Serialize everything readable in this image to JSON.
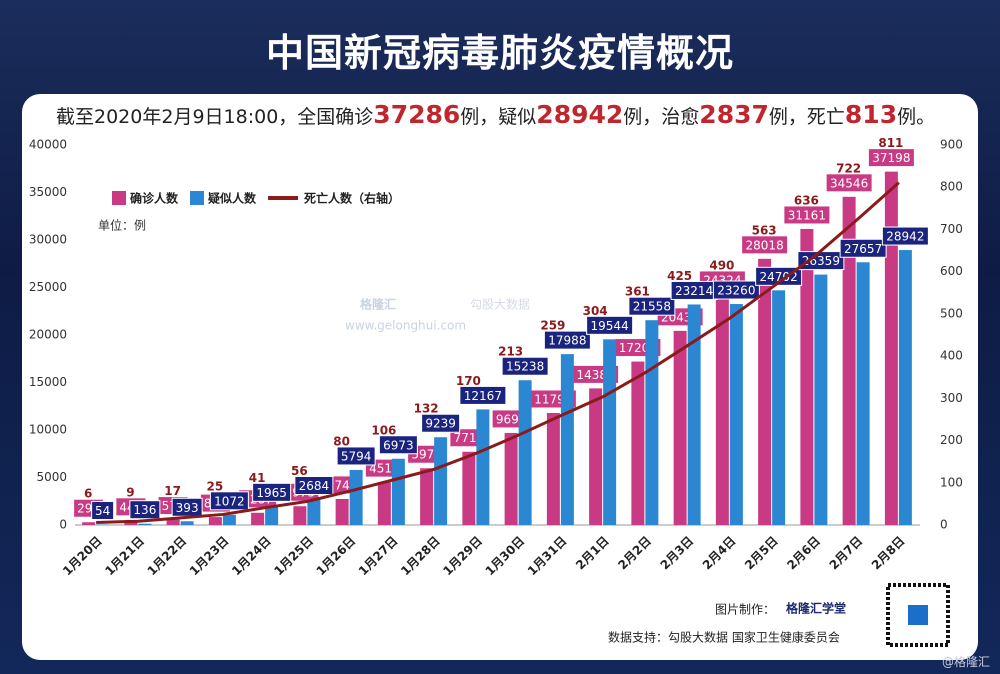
{
  "header": {
    "title": "中国新冠病毒肺炎疫情概况",
    "subtitle": [
      "截至2020年2月9日18:00，全国确诊",
      "37286",
      "例，疑似",
      "28942",
      "例，治愈",
      "2837",
      "例，死亡",
      "813",
      "例。"
    ]
  },
  "chart_data": {
    "type": "bar",
    "unit": "单位：例",
    "categories": [
      "1月20日",
      "1月21日",
      "1月22日",
      "1月23日",
      "1月24日",
      "1月25日",
      "1月26日",
      "1月27日",
      "1月28日",
      "1月29日",
      "1月30日",
      "1月31日",
      "2月1日",
      "2月2日",
      "2月3日",
      "2月4日",
      "2月5日",
      "2月6日",
      "2月7日",
      "2月8日"
    ],
    "series": [
      {
        "name": "确诊人数",
        "type": "bar",
        "color": "#c93a84",
        "label_color": "#c93a84",
        "values": [
          291,
          440,
          571,
          830,
          1287,
          1975,
          2744,
          4515,
          5974,
          7711,
          9692,
          11791,
          14380,
          17205,
          20438,
          24324,
          28018,
          31161,
          34546,
          37198
        ]
      },
      {
        "name": "疑似人数",
        "type": "bar",
        "color": "#2b87d1",
        "label_color": "#1a237e",
        "values": [
          54,
          136,
          393,
          1072,
          1965,
          2684,
          5794,
          6973,
          9239,
          12167,
          15238,
          17988,
          19544,
          21558,
          23214,
          23260,
          24702,
          26359,
          27657,
          28942
        ]
      },
      {
        "name": "死亡人数（右轴）",
        "type": "line",
        "axis": "y2",
        "color": "#8b1a1a",
        "label_color": "#8b1a1a",
        "values": [
          6,
          9,
          17,
          25,
          41,
          56,
          80,
          106,
          132,
          170,
          213,
          259,
          304,
          361,
          425,
          490,
          563,
          636,
          722,
          811
        ]
      }
    ],
    "ylim": [
      0,
      40000
    ],
    "yticks": [
      0,
      5000,
      10000,
      15000,
      20000,
      25000,
      30000,
      35000,
      40000
    ],
    "y2lim": [
      0,
      900
    ],
    "y2ticks": [
      0,
      100,
      200,
      300,
      400,
      500,
      600,
      700,
      800,
      900
    ],
    "grid": false
  },
  "watermark": {
    "brand": "格隆汇",
    "site": "www.gelonghui.com",
    "partner": "勾股大数据"
  },
  "footer": {
    "maker": "图片制作：",
    "maker_brand": "格隆汇学堂",
    "source": "数据支持：勾股大数据 国家卫生健康委员会",
    "corner": "@格隆汇"
  }
}
